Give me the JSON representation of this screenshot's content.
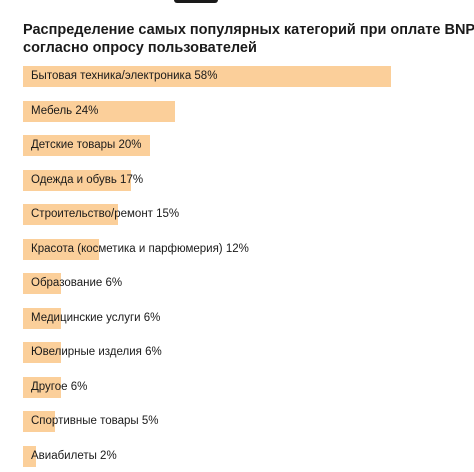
{
  "header": {
    "title_line1": "Распределение самых популярных категорий при оплате BNPL,",
    "title_line2": "согласно опросу пользователей"
  },
  "colors": {
    "bar": "#fbcf9a",
    "text": "#1a1a1a",
    "background": "#ffffff"
  },
  "chart_data": {
    "type": "bar",
    "orientation": "horizontal",
    "title": "Распределение самых популярных категорий при оплате BNPL, согласно опросу пользователей",
    "unit": "%",
    "xlim": [
      0,
      58
    ],
    "categories": [
      "Бытовая техника/электроника",
      "Мебель",
      "Детские товары",
      "Одежда и обувь",
      "Строительство/ремонт",
      "Красота (косметика и парфюмерия)",
      "Образование",
      "Медицинские услуги",
      "Ювелирные изделия",
      "Другое",
      "Спортивные товары",
      "Авиабилеты"
    ],
    "values": [
      58,
      24,
      20,
      17,
      15,
      12,
      6,
      6,
      6,
      6,
      5,
      2
    ],
    "labels": [
      "Бытовая техника/электроника 58%",
      "Мебель 24%",
      "Детские товары 20%",
      "Одежда и обувь 17%",
      "Строительство/ремонт 15%",
      "Красота (косметика и парфюмерия) 12%",
      "Образование 6%",
      "Медицинские услуги 6%",
      "Ювелирные изделия 6%",
      "Другое 6%",
      "Спортивные товары 5%",
      "Авиабилеты 2%"
    ],
    "grid": false,
    "legend": "none"
  }
}
